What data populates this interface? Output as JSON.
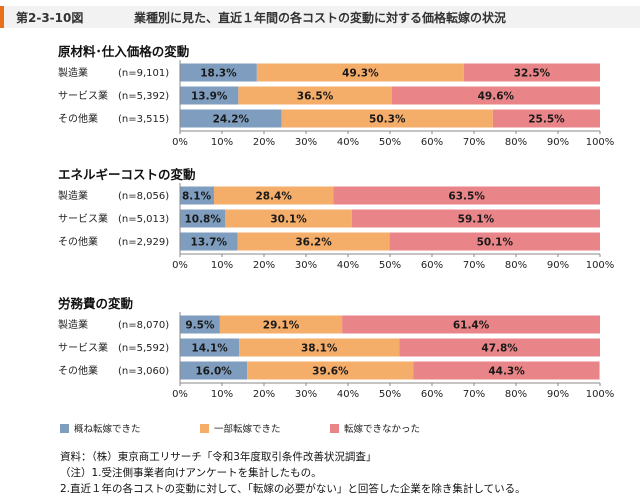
{
  "header": {
    "figure_label": "第2-3-10図",
    "title": "業種別に見た、直近１年間の各コストの変動に対する価格転嫁の状況"
  },
  "colors": {
    "full": "#7f9ebf",
    "partial": "#f5ad6a",
    "none": "#e98588",
    "header_accent": "#e7711b"
  },
  "legend": {
    "full": "概ね転嫁できた",
    "partial": "一部転嫁できた",
    "none": "転嫁できなかった"
  },
  "chart_data": [
    {
      "type": "bar",
      "orientation": "horizontal",
      "stacked": "100%",
      "title": "原材料･仕入価格の変動",
      "categories": [
        "製造業",
        "サービス業",
        "その他業"
      ],
      "n_labels": [
        "(n=9,101)",
        "(n=5,392)",
        "(n=3,515)"
      ],
      "series": [
        {
          "name": "概ね転嫁できた",
          "values": [
            18.3,
            13.9,
            24.2
          ]
        },
        {
          "name": "一部転嫁できた",
          "values": [
            49.3,
            36.5,
            50.3
          ]
        },
        {
          "name": "転嫁できなかった",
          "values": [
            32.5,
            49.6,
            25.5
          ]
        }
      ],
      "xlim": [
        0,
        100
      ],
      "ticks": [
        "0%",
        "10%",
        "20%",
        "30%",
        "40%",
        "50%",
        "60%",
        "70%",
        "80%",
        "90%",
        "100%"
      ]
    },
    {
      "type": "bar",
      "orientation": "horizontal",
      "stacked": "100%",
      "title": "エネルギーコストの変動",
      "categories": [
        "製造業",
        "サービス業",
        "その他業"
      ],
      "n_labels": [
        "(n=8,056)",
        "(n=5,013)",
        "(n=2,929)"
      ],
      "series": [
        {
          "name": "概ね転嫁できた",
          "values": [
            8.1,
            10.8,
            13.7
          ]
        },
        {
          "name": "一部転嫁できた",
          "values": [
            28.4,
            30.1,
            36.2
          ]
        },
        {
          "name": "転嫁できなかった",
          "values": [
            63.5,
            59.1,
            50.1
          ]
        }
      ],
      "xlim": [
        0,
        100
      ],
      "ticks": [
        "0%",
        "10%",
        "20%",
        "30%",
        "40%",
        "50%",
        "60%",
        "70%",
        "80%",
        "90%",
        "100%"
      ]
    },
    {
      "type": "bar",
      "orientation": "horizontal",
      "stacked": "100%",
      "title": "労務費の変動",
      "categories": [
        "製造業",
        "サービス業",
        "その他業"
      ],
      "n_labels": [
        "(n=8,070)",
        "(n=5,592)",
        "(n=3,060)"
      ],
      "series": [
        {
          "name": "概ね転嫁できた",
          "values": [
            9.5,
            14.1,
            16.0
          ]
        },
        {
          "name": "一部転嫁できた",
          "values": [
            29.1,
            38.1,
            39.6
          ]
        },
        {
          "name": "転嫁できなかった",
          "values": [
            61.4,
            47.8,
            44.3
          ]
        }
      ],
      "xlim": [
        0,
        100
      ],
      "ticks": [
        "0%",
        "10%",
        "20%",
        "30%",
        "40%",
        "50%",
        "60%",
        "70%",
        "80%",
        "90%",
        "100%"
      ]
    }
  ],
  "notes": [
    "資料：（株）東京商工リサーチ「令和3年度取引条件改善状況調査」",
    "（注）1.受注側事業者向けアンケートを集計したもの。",
    "2.直近１年の各コストの変動に対して、「転嫁の必要がない」と回答した企業を除き集計している。"
  ]
}
